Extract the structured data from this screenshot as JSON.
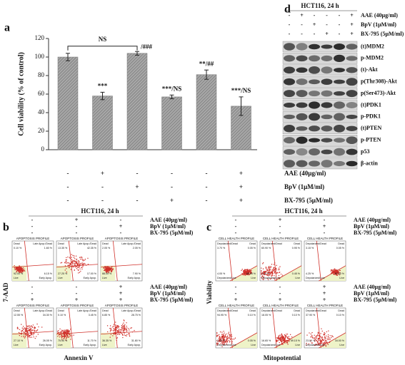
{
  "chart_data": {
    "type": "bar",
    "panel": "a",
    "y_label": "Cell viability (% of control)",
    "values": [
      100,
      58,
      104,
      57,
      81,
      47
    ],
    "errors": [
      4,
      4,
      2,
      2,
      5,
      10
    ],
    "annotations": [
      null,
      "***",
      "/###",
      "***/NS",
      "**/##",
      "***/NS"
    ],
    "bracket_label": "NS",
    "color": "#8c8c8c",
    "ylim": [
      0,
      120
    ],
    "yticks": [
      0,
      20,
      40,
      60,
      80,
      100,
      120
    ],
    "treatments": [
      {
        "name": "AAE (40μg/ml)",
        "signs": [
          "-",
          "+",
          "-",
          "-",
          "-",
          "+"
        ]
      },
      {
        "name": "BpV (1μM/ml)",
        "signs": [
          "-",
          "-",
          "+",
          "-",
          "-",
          "+"
        ]
      },
      {
        "name": "BX-795 (5μM/ml)",
        "signs": [
          "-",
          "-",
          "-",
          "+",
          "-",
          "+"
        ]
      }
    ]
  },
  "panel_b": {
    "label": "b",
    "title": "HCT116, 24 h",
    "y_label": "7-AAD",
    "x_label": "Annexin V",
    "conditions": [
      {
        "name": "AAE (40μg/ml)",
        "signs": [
          "-",
          "+",
          "-"
        ]
      },
      {
        "name": "BpV (1μM/ml)",
        "signs": [
          "-",
          "-",
          "+"
        ]
      },
      {
        "name": "BX-795 (5μM/ml)",
        "signs": [
          "-",
          "-",
          "-"
        ]
      }
    ],
    "conditions_bottom": [
      {
        "name": "AAE (40μg/ml)",
        "signs": [
          "-",
          "-",
          "+"
        ]
      },
      {
        "name": "BpV (1μM/ml)",
        "signs": [
          "-",
          "-",
          "+"
        ]
      },
      {
        "name": "BX-795 (5μM/ml)",
        "signs": [
          "+",
          "+",
          "+"
        ]
      }
    ],
    "plots": [
      {
        "title": "APOPTOSIS PROFILE",
        "quadrants": [
          "Dead",
          "Late Apop./Dead",
          "Live",
          "Early Apop."
        ],
        "percents": [
          "0.10 %",
          "1.60 %",
          "92.00 %",
          "6.15 %"
        ]
      },
      {
        "title": "APOPTOSIS PROFILE",
        "quadrants": [
          "Dead",
          "Late Apop./Dead",
          "Live",
          "Early Apop."
        ],
        "percents": [
          "13.35 %",
          "42.35 %",
          "27.25 %",
          "17.00 %"
        ]
      },
      {
        "title": "APOPTOSIS PROFILE",
        "quadrants": [
          "Dead",
          "Late Apop./Dead",
          "Live",
          "Early Apop."
        ],
        "percents": [
          "2.05 %",
          "2.05 %",
          "88.00 %",
          "7.90 %"
        ]
      },
      {
        "title": "APOPTOSIS PROFILE",
        "quadrants": [
          "Dead",
          "Late Apop./Dead",
          "Live",
          "Early Apop."
        ],
        "percents": [
          "12.55 %",
          "34.30 %",
          "27.10 %",
          "26.05 %"
        ]
      },
      {
        "title": "APOPTOSIS PROFILE",
        "quadrants": [
          "Dead",
          "Late Apop./Dead",
          "Live",
          "Early Apop."
        ],
        "percents": [
          "0.10 %",
          "3.45 %",
          "75.90 %",
          "11.70 %"
        ]
      },
      {
        "title": "APOPTOSIS PROFILE",
        "quadrants": [
          "Dead",
          "Late Apop./Dead",
          "Live",
          "Early Apop."
        ],
        "percents": [
          "6.85 %",
          "28.75 %",
          "36.35 %",
          "31.80 %"
        ]
      }
    ]
  },
  "panel_c": {
    "label": "c",
    "title": "HCT116, 24 h",
    "y_label": "Viability",
    "x_label": "Mitopotential",
    "conditions": [
      {
        "name": "AAE (40μg/ml)",
        "signs": [
          "-",
          "+",
          "-"
        ]
      },
      {
        "name": "BpV (1μM/ml)",
        "signs": [
          "-",
          "-",
          "+"
        ]
      },
      {
        "name": "BX-795 (5μM/ml)",
        "signs": [
          "-",
          "-",
          "-"
        ]
      }
    ],
    "conditions_bottom": [
      {
        "name": "AAE (40μg/ml)",
        "signs": [
          "-",
          "-",
          "+"
        ]
      },
      {
        "name": "BpV (1μM/ml)",
        "signs": [
          "-",
          "-",
          "+"
        ]
      },
      {
        "name": "BX-795 (5μM/ml)",
        "signs": [
          "+",
          "+",
          "+"
        ]
      }
    ],
    "plots": [
      {
        "title": "CELL HEALTH PROFILE",
        "quadrants": [
          "Depolarized/Dead",
          "Dead",
          "Depolarized/Live",
          "Live"
        ],
        "percents": [
          "3.70 %",
          "0.05 %",
          "4.05 %",
          "88.95 %"
        ]
      },
      {
        "title": "CELL HEALTH PROFILE",
        "quadrants": [
          "Depolarized/Dead",
          "Dead",
          "Depolarized/Live",
          "Live"
        ],
        "percents": [
          "60.90 %",
          "0.95 %",
          "4.70 %",
          "0.45 %"
        ]
      },
      {
        "title": "CELL HEALTH PROFILE",
        "quadrants": [
          "Depolarized/Dead",
          "Dead",
          "Depolarized/Live",
          "Live"
        ],
        "percents": [
          "3.15 %",
          "0.05 %",
          "4.25 %",
          "87.60 %"
        ]
      },
      {
        "title": "CELL HEALTH PROFILE",
        "quadrants": [
          "Depolarized/Dead",
          "Dead",
          "Depolarized/Live",
          "Live"
        ],
        "percents": [
          "94.95 %",
          "0.10 %",
          "3.40 %",
          "0.05 %"
        ]
      },
      {
        "title": "CELL HEALTH PROFILE",
        "quadrants": [
          "Depolarized/Dead",
          "Dead",
          "Depolarized/Live",
          "Live"
        ],
        "percents": [
          "18.05 %",
          "0.10 %",
          "16.65 %",
          "59.15 %"
        ]
      },
      {
        "title": "CELL HEALTH PROFILE",
        "quadrants": [
          "Depolarized/Dead",
          "Dead",
          "Depolarized/Live",
          "Live"
        ],
        "percents": [
          "37.90 %",
          "0.10 %",
          "23.00 %",
          "34.00 %"
        ]
      }
    ]
  },
  "panel_d": {
    "label": "d",
    "title": "HCT116, 24 h",
    "conditions": [
      {
        "name": "AAE (40μg/ml)",
        "signs": [
          "-",
          "+",
          "-",
          "-",
          "-",
          "+"
        ]
      },
      {
        "name": "BpV (1μM/ml)",
        "signs": [
          "-",
          "-",
          "+",
          "-",
          "-",
          "+"
        ]
      },
      {
        "name": "BX-795 (5μM/ml)",
        "signs": [
          "-",
          "-",
          "-",
          "+",
          "-",
          "+"
        ]
      }
    ],
    "proteins": [
      "(t)MDM2",
      "p-MDM2",
      "(t)-Akt",
      "p(Thr308)-Akt",
      "p(Ser473)-Akt",
      "(t)PDK1",
      "p-PDK1",
      "(t)PTEN",
      "p-PTEN",
      "p53",
      "β-actin"
    ]
  }
}
